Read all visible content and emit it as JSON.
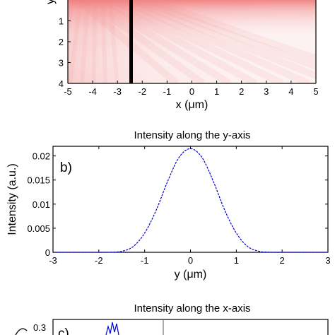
{
  "chart_data": [
    {
      "panel": "a",
      "type": "heatmap",
      "title": "",
      "xlabel": "x (μm)",
      "ylabel": "y",
      "xlim": [
        -5,
        5
      ],
      "ylim": [
        0,
        4
      ],
      "x_ticks": [
        "-5",
        "-4",
        "-3",
        "-2",
        "-1",
        "0",
        "1",
        "2",
        "3",
        "4",
        "5"
      ],
      "y_ticks": [
        "1",
        "2",
        "3",
        "4"
      ],
      "marker_line_x": -2.45,
      "colors": {
        "field": "#f28a8a",
        "background": "#ffffff",
        "marker": "#000000"
      }
    },
    {
      "panel": "b",
      "type": "line",
      "label": "b)",
      "title": "Intensity along the y-axis",
      "xlabel": "y (μm)",
      "ylabel": "Intensity (a.u.)",
      "xlim": [
        -3,
        3
      ],
      "ylim": [
        0,
        0.022
      ],
      "x_ticks": [
        "-3",
        "-2",
        "-1",
        "0",
        "1",
        "2",
        "3"
      ],
      "y_ticks": [
        "0",
        "0.005",
        "0.01",
        "0.015",
        "0.02"
      ],
      "x": [
        -3.0,
        -2.5,
        -2.0,
        -1.75,
        -1.5,
        -1.25,
        -1.0,
        -0.75,
        -0.5,
        -0.25,
        0.0,
        0.25,
        0.5,
        0.75,
        1.0,
        1.25,
        1.5,
        1.75,
        2.0,
        2.5,
        3.0
      ],
      "y": [
        0.0,
        0.0,
        0.0,
        2e-05,
        0.0002,
        0.0012,
        0.004,
        0.0087,
        0.0147,
        0.0197,
        0.0215,
        0.0197,
        0.0147,
        0.0087,
        0.004,
        0.0012,
        0.0002,
        2e-05,
        0.0,
        0.0,
        0.0
      ],
      "line_color": "#0000cc"
    },
    {
      "panel": "c",
      "type": "line",
      "label": "c)",
      "title": "Intensity along the x-axis",
      "xlabel": "",
      "ylabel": "",
      "y_ticks": [
        "0.3"
      ],
      "line_color": "#0000cc"
    }
  ]
}
